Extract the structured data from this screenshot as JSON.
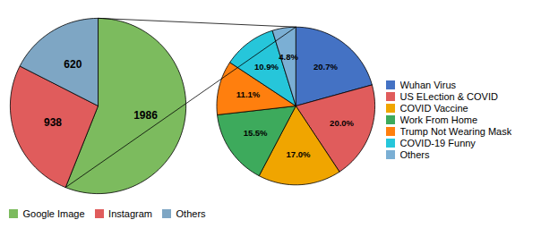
{
  "chart_data": [
    {
      "type": "pie",
      "categories": [
        "Google Image",
        "Instagram",
        "Others"
      ],
      "values": [
        1986,
        938,
        620
      ],
      "colors": [
        "#7CBB5E",
        "#E05C5C",
        "#7EA6C4"
      ],
      "data_labels": true,
      "legend": "lower left"
    },
    {
      "type": "pie",
      "categories": [
        "Wuhan Virus",
        "US ELection & COVID",
        "COVID Vaccine",
        "Work From Home",
        "Trump Not Wearing Mask",
        "COVID-19 Funny",
        "Others"
      ],
      "values": [
        20.7,
        20.0,
        17.0,
        15.5,
        11.1,
        10.9,
        4.8
      ],
      "value_labels": [
        "20.7%",
        "20.0%",
        "17.0%",
        "15.5%",
        "11.1%",
        "10.9%",
        "4.8%"
      ],
      "colors": [
        "#4472C4",
        "#E05C5C",
        "#F0A500",
        "#3DAA5C",
        "#FF7F0E",
        "#26C6DA",
        "#7BAFD4"
      ],
      "data_labels": true,
      "legend": "right"
    }
  ]
}
